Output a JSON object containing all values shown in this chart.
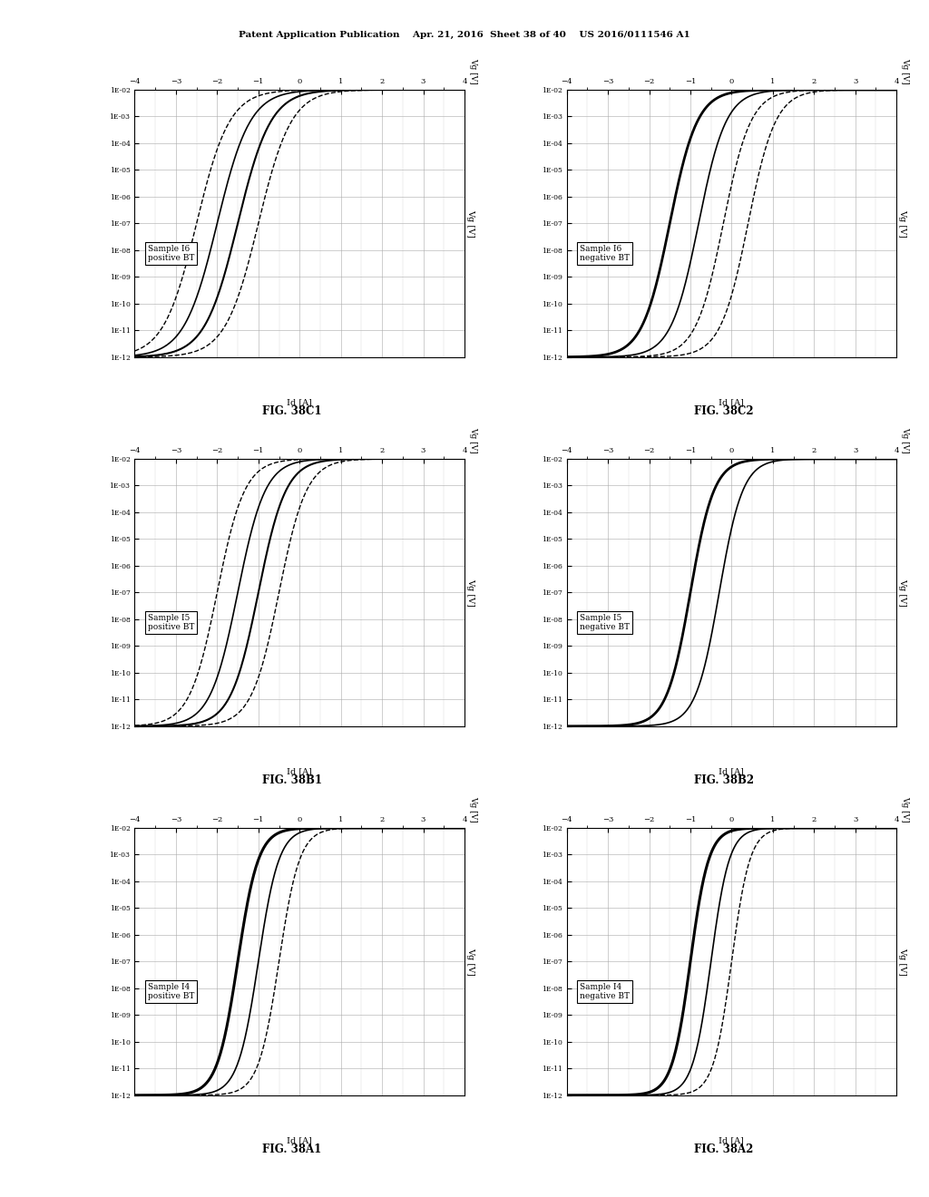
{
  "header_text": "Patent Application Publication    Apr. 21, 2016  Sheet 38 of 40    US 2016/0111546 A1",
  "plots": [
    {
      "fig_label": "FIG. 38A1",
      "sample": "Sample I4",
      "bt_type": "positive BT",
      "row": 2,
      "col": 0,
      "curves": [
        {
          "vth": -1.5,
          "style": "-",
          "lw": 2.2,
          "steepness": 4.0
        },
        {
          "vth": -1.0,
          "style": "-",
          "lw": 1.2,
          "steepness": 4.0
        },
        {
          "vth": -0.5,
          "style": "--",
          "lw": 1.0,
          "steepness": 4.0
        }
      ]
    },
    {
      "fig_label": "FIG. 38A2",
      "sample": "Sample I4",
      "bt_type": "negative BT",
      "row": 2,
      "col": 1,
      "curves": [
        {
          "vth": -1.0,
          "style": "-",
          "lw": 2.2,
          "steepness": 4.5
        },
        {
          "vth": -0.5,
          "style": "-",
          "lw": 1.2,
          "steepness": 4.5
        },
        {
          "vth": 0.0,
          "style": "--",
          "lw": 1.0,
          "steepness": 4.5
        }
      ]
    },
    {
      "fig_label": "FIG. 38B1",
      "sample": "Sample I5",
      "bt_type": "positive BT",
      "row": 1,
      "col": 0,
      "curves": [
        {
          "vth": -2.0,
          "style": "--",
          "lw": 1.0,
          "steepness": 3.0
        },
        {
          "vth": -1.5,
          "style": "-",
          "lw": 1.2,
          "steepness": 3.0
        },
        {
          "vth": -1.0,
          "style": "-",
          "lw": 1.5,
          "steepness": 3.0
        },
        {
          "vth": -0.5,
          "style": "--",
          "lw": 1.0,
          "steepness": 3.0
        }
      ]
    },
    {
      "fig_label": "FIG. 38B2",
      "sample": "Sample I5",
      "bt_type": "negative BT",
      "row": 1,
      "col": 1,
      "curves": [
        {
          "vth": -1.0,
          "style": "-",
          "lw": 2.0,
          "steepness": 3.5
        },
        {
          "vth": -0.3,
          "style": "-",
          "lw": 1.2,
          "steepness": 3.5
        }
      ]
    },
    {
      "fig_label": "FIG. 38C1",
      "sample": "Sample I6",
      "bt_type": "positive BT",
      "row": 0,
      "col": 0,
      "curves": [
        {
          "vth": -2.5,
          "style": "--",
          "lw": 1.0,
          "steepness": 2.5
        },
        {
          "vth": -2.0,
          "style": "-",
          "lw": 1.2,
          "steepness": 2.5
        },
        {
          "vth": -1.5,
          "style": "-",
          "lw": 1.5,
          "steepness": 2.5
        },
        {
          "vth": -1.0,
          "style": "--",
          "lw": 1.0,
          "steepness": 2.5
        }
      ]
    },
    {
      "fig_label": "FIG. 38C2",
      "sample": "Sample I6",
      "bt_type": "negative BT",
      "row": 0,
      "col": 1,
      "curves": [
        {
          "vth": -1.5,
          "style": "-",
          "lw": 2.0,
          "steepness": 3.0
        },
        {
          "vth": -0.8,
          "style": "-",
          "lw": 1.2,
          "steepness": 3.0
        },
        {
          "vth": -0.2,
          "style": "--",
          "lw": 1.0,
          "steepness": 3.0
        },
        {
          "vth": 0.4,
          "style": "--",
          "lw": 1.0,
          "steepness": 3.0
        }
      ]
    }
  ],
  "background_color": "#ffffff",
  "grid_color": "#aaaaaa"
}
